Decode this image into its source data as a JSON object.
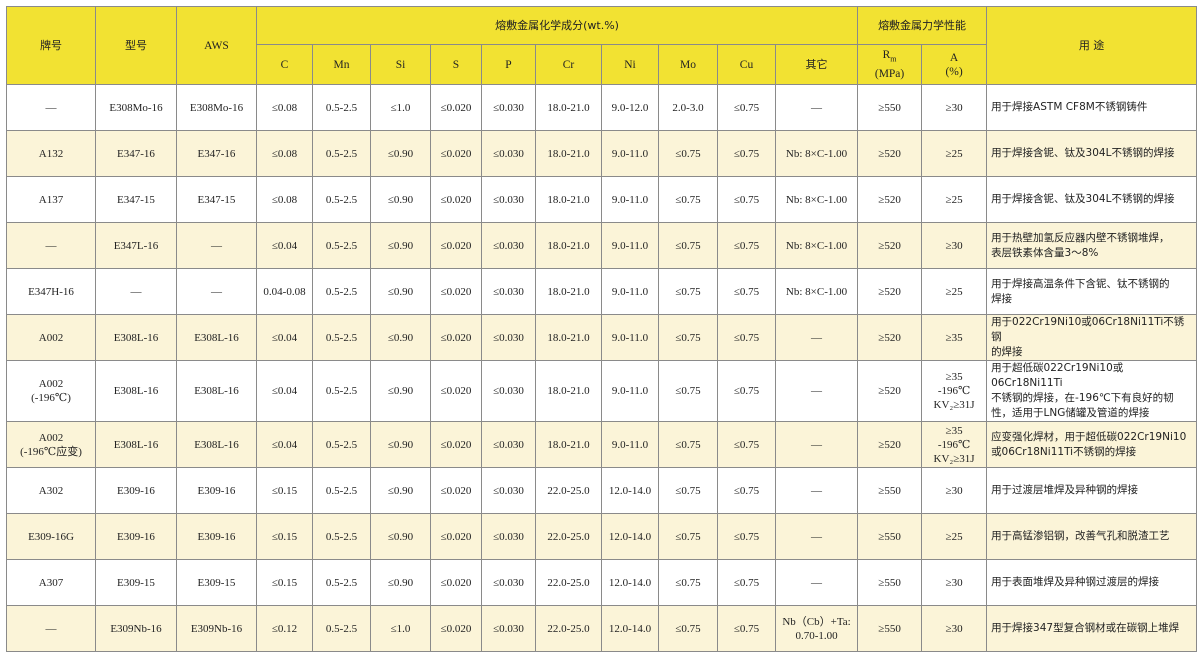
{
  "header": {
    "grade": "牌号",
    "model": "型号",
    "aws": "AWS",
    "chem_group": "熔敷金属化学成分(wt.%)",
    "mech_group": "熔敷金属力学性能",
    "use": "用  途",
    "chem_cols": [
      "C",
      "Mn",
      "Si",
      "S",
      "P",
      "Cr",
      "Ni",
      "Mo",
      "Cu",
      "其它"
    ],
    "rm_main": "R",
    "rm_sub": "m",
    "rm_unit": "(MPa)",
    "a_main": "A",
    "a_unit": "(%)"
  },
  "rows": [
    [
      "—",
      "E308Mo-16",
      "E308Mo-16",
      "≤0.08",
      "0.5-2.5",
      "≤1.0",
      "≤0.020",
      "≤0.030",
      "18.0-21.0",
      "9.0-12.0",
      "2.0-3.0",
      "≤0.75",
      "—",
      "≥550",
      "≥30",
      "用于焊接ASTM CF8M不锈钢铸件"
    ],
    [
      "A132",
      "E347-16",
      "E347-16",
      "≤0.08",
      "0.5-2.5",
      "≤0.90",
      "≤0.020",
      "≤0.030",
      "18.0-21.0",
      "9.0-11.0",
      "≤0.75",
      "≤0.75",
      "Nb: 8×C-1.00",
      "≥520",
      "≥25",
      "用于焊接含铌、钛及304L不锈钢的焊接"
    ],
    [
      "A137",
      "E347-15",
      "E347-15",
      "≤0.08",
      "0.5-2.5",
      "≤0.90",
      "≤0.020",
      "≤0.030",
      "18.0-21.0",
      "9.0-11.0",
      "≤0.75",
      "≤0.75",
      "Nb: 8×C-1.00",
      "≥520",
      "≥25",
      "用于焊接含铌、钛及304L不锈钢的焊接"
    ],
    [
      "—",
      "E347L-16",
      "—",
      "≤0.04",
      "0.5-2.5",
      "≤0.90",
      "≤0.020",
      "≤0.030",
      "18.0-21.0",
      "9.0-11.0",
      "≤0.75",
      "≤0.75",
      "Nb: 8×C-1.00",
      "≥520",
      "≥30",
      "用于热壁加氢反应器内壁不锈钢堆焊，\n表层铁素体含量3～8%"
    ],
    [
      "E347H-16",
      "—",
      "—",
      "0.04-0.08",
      "0.5-2.5",
      "≤0.90",
      "≤0.020",
      "≤0.030",
      "18.0-21.0",
      "9.0-11.0",
      "≤0.75",
      "≤0.75",
      "Nb: 8×C-1.00",
      "≥520",
      "≥25",
      "用于焊接高温条件下含铌、钛不锈钢的\n焊接"
    ],
    [
      "A002",
      "E308L-16",
      "E308L-16",
      "≤0.04",
      "0.5-2.5",
      "≤0.90",
      "≤0.020",
      "≤0.030",
      "18.0-21.0",
      "9.0-11.0",
      "≤0.75",
      "≤0.75",
      "—",
      "≥520",
      "≥35",
      "用于022Cr19Ni10或06Cr18Ni11Ti不锈钢\n的焊接"
    ],
    [
      "A002\n(-196℃)",
      "E308L-16",
      "E308L-16",
      "≤0.04",
      "0.5-2.5",
      "≤0.90",
      "≤0.020",
      "≤0.030",
      "18.0-21.0",
      "9.0-11.0",
      "≤0.75",
      "≤0.75",
      "—",
      "≥520",
      "≥35\n-196℃\nKV₂≥31J",
      "用于超低碳022Cr19Ni10或06Cr18Ni11Ti\n不锈钢的焊接，在-196℃下有良好的韧\n性，适用于LNG储罐及管道的焊接"
    ],
    [
      "A002\n(-196℃应变)",
      "E308L-16",
      "E308L-16",
      "≤0.04",
      "0.5-2.5",
      "≤0.90",
      "≤0.020",
      "≤0.030",
      "18.0-21.0",
      "9.0-11.0",
      "≤0.75",
      "≤0.75",
      "—",
      "≥520",
      "≥35\n-196℃\nKV₂≥31J",
      "应变强化焊材，用于超低碳022Cr19Ni10\n或06Cr18Ni11Ti不锈钢的焊接"
    ],
    [
      "A302",
      "E309-16",
      "E309-16",
      "≤0.15",
      "0.5-2.5",
      "≤0.90",
      "≤0.020",
      "≤0.030",
      "22.0-25.0",
      "12.0-14.0",
      "≤0.75",
      "≤0.75",
      "—",
      "≥550",
      "≥30",
      "用于过渡层堆焊及异种钢的焊接"
    ],
    [
      "E309-16G",
      "E309-16",
      "E309-16",
      "≤0.15",
      "0.5-2.5",
      "≤0.90",
      "≤0.020",
      "≤0.030",
      "22.0-25.0",
      "12.0-14.0",
      "≤0.75",
      "≤0.75",
      "—",
      "≥550",
      "≥25",
      "用于高锰渗铝钢，改善气孔和脱渣工艺"
    ],
    [
      "A307",
      "E309-15",
      "E309-15",
      "≤0.15",
      "0.5-2.5",
      "≤0.90",
      "≤0.020",
      "≤0.030",
      "22.0-25.0",
      "12.0-14.0",
      "≤0.75",
      "≤0.75",
      "—",
      "≥550",
      "≥30",
      "用于表面堆焊及异种钢过渡层的焊接"
    ],
    [
      "—",
      "E309Nb-16",
      "E309Nb-16",
      "≤0.12",
      "0.5-2.5",
      "≤1.0",
      "≤0.020",
      "≤0.030",
      "22.0-25.0",
      "12.0-14.0",
      "≤0.75",
      "≤0.75",
      "Nb（Cb）+Ta:\n0.70-1.00",
      "≥550",
      "≥30",
      "用于焊接347型复合钢材或在碳钢上堆焊"
    ]
  ],
  "colors": {
    "header_bg": "#f2e232",
    "alt_row_bg": "#fbf4d8",
    "border": "#8a8a8a"
  }
}
